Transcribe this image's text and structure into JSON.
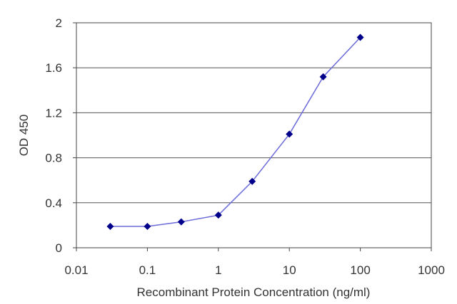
{
  "chart_data": {
    "type": "scatter",
    "xlabel": "Recombinant Protein Concentration (ng/ml)",
    "ylabel": "OD 450",
    "x_scale": "log",
    "xlim": [
      0.01,
      1000
    ],
    "ylim": [
      0,
      2
    ],
    "x_ticks": [
      "0.01",
      "0.1",
      "1",
      "10",
      "100",
      "1000"
    ],
    "y_ticks": [
      "0",
      "0.4",
      "0.8",
      "1.2",
      "1.6",
      "2"
    ],
    "grid": "horizontal",
    "series": [
      {
        "color": "#00008b",
        "line_color": "#6a6ad8",
        "x": [
          0.03,
          0.1,
          0.3,
          1,
          3,
          10,
          30,
          100
        ],
        "y": [
          0.19,
          0.19,
          0.23,
          0.29,
          0.59,
          1.01,
          1.52,
          1.87
        ]
      }
    ]
  }
}
